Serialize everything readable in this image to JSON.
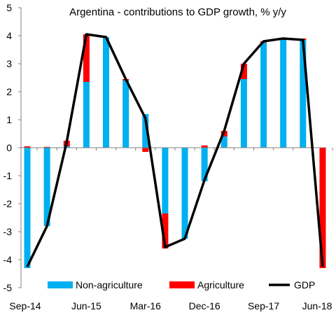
{
  "chart_data": {
    "type": "bar",
    "title": "Argentina  - contributions to GDP growth, % y/y",
    "xlabel": "",
    "ylabel": "",
    "ylim": [
      -5,
      5
    ],
    "y_ticks": [
      "-5",
      "-4",
      "-3",
      "-2",
      "-1",
      "0",
      "1",
      "2",
      "3",
      "4",
      "5"
    ],
    "categories": [
      "Sep-14",
      "Dec-14",
      "Mar-15",
      "Jun-15",
      "Sep-15",
      "Dec-15",
      "Mar-16",
      "Jun-16",
      "Sep-16",
      "Dec-16",
      "Mar-17",
      "Jun-17",
      "Sep-17",
      "Dec-17",
      "Mar-18",
      "Jun-18"
    ],
    "x_tick_labels": [
      "Sep-14",
      "Jun-15",
      "Mar-16",
      "Dec-16",
      "Sep-17",
      "Jun-18"
    ],
    "stacked": true,
    "grid": false,
    "legend_position": "bottom",
    "series": [
      {
        "name": "Non-agriculture",
        "kind": "bar",
        "color": "#00B0F0",
        "values": [
          -4.3,
          -2.8,
          0.05,
          2.35,
          3.95,
          2.4,
          1.2,
          -2.35,
          -3.25,
          -1.2,
          0.4,
          2.45,
          3.75,
          3.85,
          3.85,
          0.0
        ]
      },
      {
        "name": "Agriculture",
        "kind": "bar",
        "color": "#FF0000",
        "values": [
          0.05,
          0.03,
          0.2,
          1.7,
          0.0,
          0.05,
          -0.15,
          -1.25,
          0.0,
          0.08,
          0.2,
          0.55,
          0.05,
          0.05,
          0.05,
          -4.3
        ]
      },
      {
        "name": "GDP",
        "kind": "line",
        "color": "#000000",
        "values": [
          -4.25,
          -2.8,
          0.2,
          4.05,
          3.95,
          2.45,
          1.05,
          -3.55,
          -3.25,
          -1.15,
          0.6,
          3.0,
          3.8,
          3.9,
          3.85,
          -4.25
        ]
      }
    ]
  }
}
